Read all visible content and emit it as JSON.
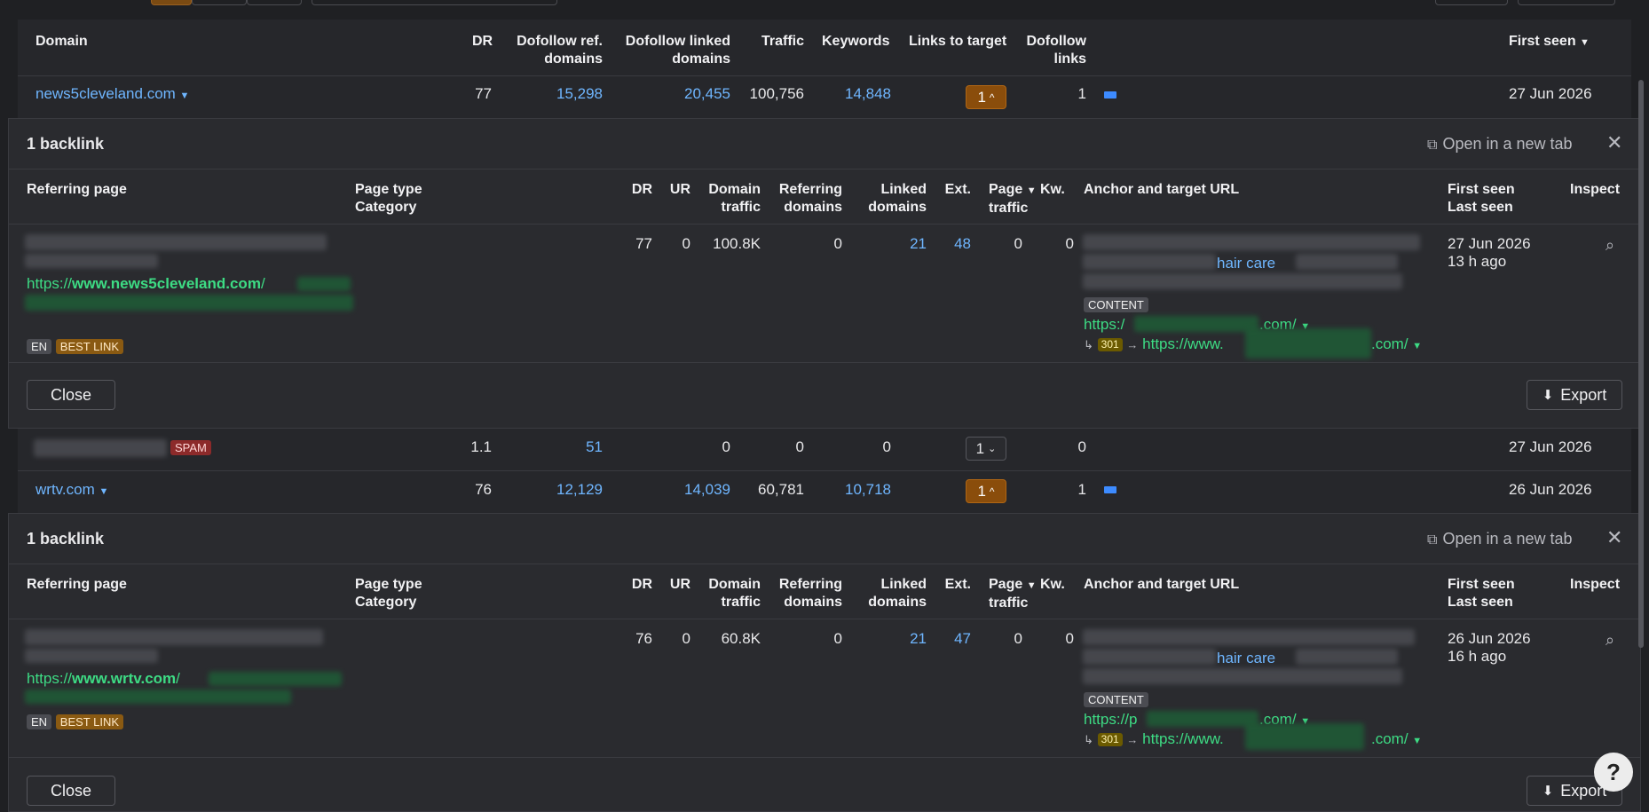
{
  "table": {
    "headers": {
      "domain": "Domain",
      "dr": "DR",
      "dofollow_ref_1": "Dofollow ref.",
      "dofollow_ref_2": "domains",
      "dofollow_linked_1": "Dofollow linked",
      "dofollow_linked_2": "domains",
      "traffic": "Traffic",
      "keywords": "Keywords",
      "links_to_target": "Links to target",
      "dofollow_links_1": "Dofollow",
      "dofollow_links_2": "links",
      "first_seen": "First seen"
    },
    "rows": [
      {
        "domain": "news5cleveland.com",
        "dr": "77",
        "ref_domains": "15,298",
        "linked_domains": "20,455",
        "traffic": "100,756",
        "keywords": "14,848",
        "links_to_target": "1",
        "dofollow_links": "1",
        "first_seen": "27 Jun 2026"
      },
      {
        "badge": "SPAM",
        "dr": "1.1",
        "ref_domains": "51",
        "linked_domains": "0",
        "traffic": "0",
        "keywords": "0",
        "links_to_target": "1",
        "dofollow_links": "0",
        "first_seen": "27 Jun 2026"
      },
      {
        "domain": "wrtv.com",
        "dr": "76",
        "ref_domains": "12,129",
        "linked_domains": "14,039",
        "traffic": "60,781",
        "keywords": "10,718",
        "links_to_target": "1",
        "dofollow_links": "1",
        "first_seen": "26 Jun 2026"
      }
    ]
  },
  "panels": [
    {
      "title": "1 backlink",
      "open_new_tab": "Open in a new tab",
      "headers": {
        "referring_page": "Referring page",
        "page_type": "Page type",
        "category": "Category",
        "dr": "DR",
        "ur": "UR",
        "domain_traffic_1": "Domain",
        "domain_traffic_2": "traffic",
        "referring_domains_1": "Referring",
        "referring_domains_2": "domains",
        "linked_domains_1": "Linked",
        "linked_domains_2": "domains",
        "ext": "Ext.",
        "page_traffic_1": "Page",
        "page_traffic_2": "traffic",
        "kw": "Kw.",
        "anchor": "Anchor and target URL",
        "first_seen": "First seen",
        "last_seen": "Last seen",
        "inspect": "Inspect"
      },
      "row": {
        "url_prefix": "https://",
        "url_domain": "www.news5cleveland.com",
        "url_slash": "/",
        "lang": "EN",
        "best": "BEST LINK",
        "dr": "77",
        "ur": "0",
        "domain_traffic": "100.8K",
        "referring_domains": "0",
        "linked_domains": "21",
        "ext": "48",
        "page_traffic": "0",
        "kw": "0",
        "anchor_text": "hair care",
        "content_badge": "CONTENT",
        "target_prefix": "https:/",
        "target_suffix": ".com/",
        "redirect_code": "301",
        "redirect_prefix": "https://www.",
        "redirect_suffix": ".com/",
        "first_seen": "27 Jun 2026",
        "last_seen": "13 h ago"
      },
      "close_label": "Close",
      "export_label": "Export"
    },
    {
      "title": "1 backlink",
      "open_new_tab": "Open in a new tab",
      "headers": {
        "referring_page": "Referring page",
        "page_type": "Page type",
        "category": "Category",
        "dr": "DR",
        "ur": "UR",
        "domain_traffic_1": "Domain",
        "domain_traffic_2": "traffic",
        "referring_domains_1": "Referring",
        "referring_domains_2": "domains",
        "linked_domains_1": "Linked",
        "linked_domains_2": "domains",
        "ext": "Ext.",
        "page_traffic_1": "Page",
        "page_traffic_2": "traffic",
        "kw": "Kw.",
        "anchor": "Anchor and target URL",
        "first_seen": "First seen",
        "last_seen": "Last seen",
        "inspect": "Inspect"
      },
      "row": {
        "url_prefix": "https://",
        "url_domain": "www.wrtv.com",
        "url_slash": "/",
        "lang": "EN",
        "best": "BEST LINK",
        "dr": "76",
        "ur": "0",
        "domain_traffic": "60.8K",
        "referring_domains": "0",
        "linked_domains": "21",
        "ext": "47",
        "page_traffic": "0",
        "kw": "0",
        "anchor_text": "hair care",
        "content_badge": "CONTENT",
        "target_prefix": "https://p",
        "target_suffix": ".com/",
        "redirect_code": "301",
        "redirect_prefix": "https://www.",
        "redirect_suffix": ".com/",
        "first_seen": "26 Jun 2026",
        "last_seen": "16 h ago"
      },
      "close_label": "Close",
      "export_label": "Export"
    }
  ],
  "help": "?",
  "colors": {
    "accent_orange": "#8a4d0b",
    "link_blue": "#6fb6ff",
    "url_green": "#3ddc84",
    "spam_red": "#8c2a2a"
  }
}
